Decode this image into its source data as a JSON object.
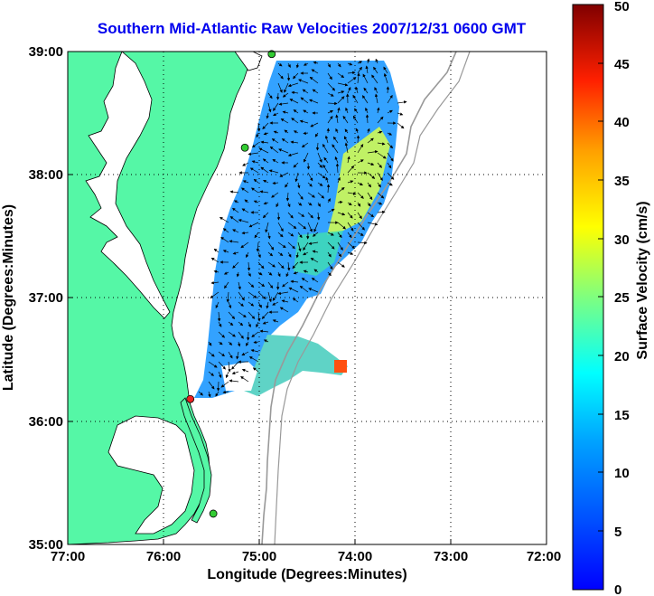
{
  "title": "Southern Mid-Atlantic Raw Velocities 2007/12/31 0600 GMT",
  "xlabel": "Longitude (Degrees:Minutes)",
  "ylabel": "Latitude (Degrees:Minutes)",
  "x_ticks": [
    "77:00",
    "76:00",
    "75:00",
    "74:00",
    "73:00",
    "72:00"
  ],
  "y_ticks": [
    "39:00",
    "38:00",
    "37:00",
    "36:00",
    "35:00"
  ],
  "colorbar": {
    "label": "Surface Velocity (cm/s)",
    "ticks": [
      "50",
      "45",
      "40",
      "35",
      "30",
      "25",
      "20",
      "15",
      "10",
      "5",
      "0"
    ],
    "range": [
      0,
      50
    ]
  },
  "chart_data": {
    "type": "heatmap",
    "title": "Southern Mid-Atlantic Raw Velocities 2007/12/31 0600 GMT",
    "xlabel": "Longitude (Degrees:Minutes)",
    "ylabel": "Latitude (Degrees:Minutes)",
    "xlim": [
      -77,
      -72
    ],
    "ylim": [
      35,
      39
    ],
    "color_range_cm_s": [
      0,
      50
    ],
    "grid": true,
    "colormap": "jet",
    "stations": [
      {
        "lon": -74.87,
        "lat": 38.98,
        "color": "#33cc33"
      },
      {
        "lon": -75.15,
        "lat": 38.22,
        "color": "#33cc33"
      },
      {
        "lon": -75.72,
        "lat": 36.18,
        "color": "#ee2222"
      },
      {
        "lon": -75.48,
        "lat": 35.25,
        "color": "#33cc33"
      }
    ]
  },
  "colors": {
    "land": "#55f7a6",
    "title": "#0000ee",
    "grid": "#000000",
    "bathymetry": "#999999"
  }
}
